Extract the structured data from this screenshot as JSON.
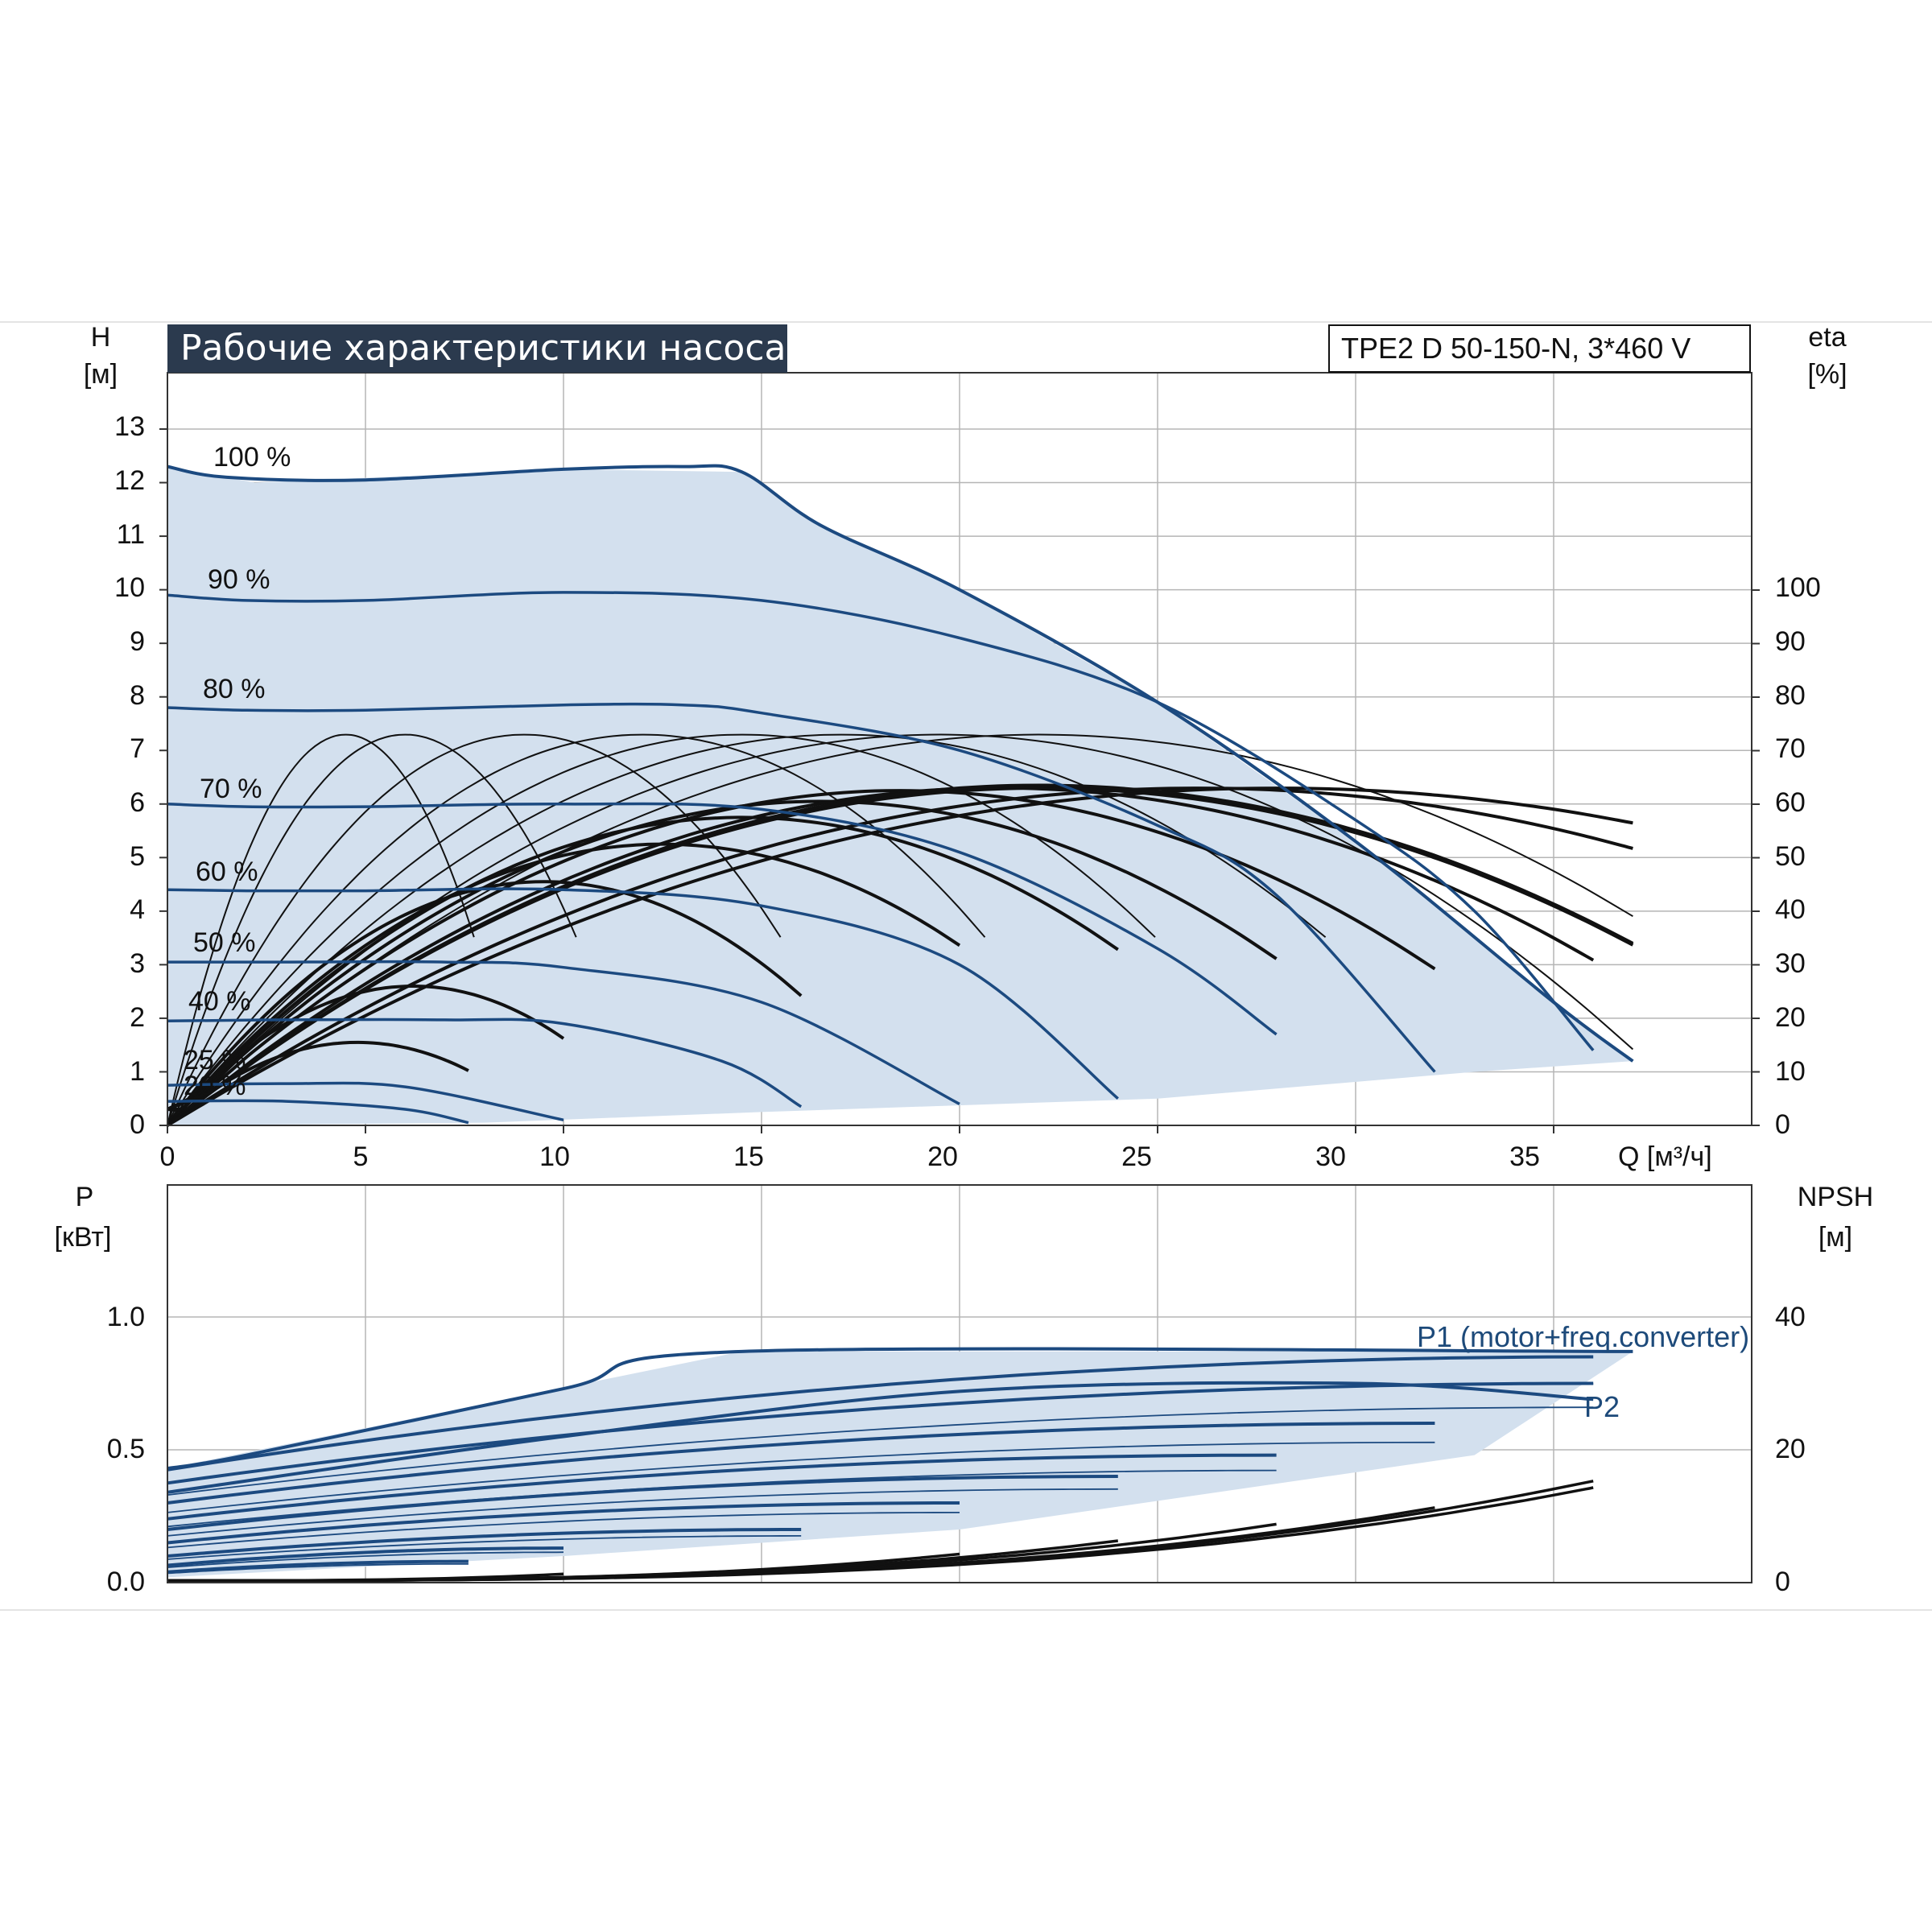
{
  "title": "Рабочие характеристики насоса",
  "model": "TPE2 D 50-150-N, 3*460 V",
  "colors": {
    "curve_blue": "#1c4a80",
    "efficiency_black": "#111111",
    "area_fill": "#d3e0ee",
    "left_fill": "#eef6fc",
    "grid": "#b5b5b5"
  },
  "axes": {
    "head_label": "H",
    "head_unit": "[м]",
    "eta_label": "eta",
    "eta_unit": "[%]",
    "power_label": "P",
    "power_unit": "[кВт]",
    "npsh_label": "NPSH",
    "npsh_unit": "[м]",
    "flow_label": "Q [м³/ч]"
  },
  "labels": {
    "p1": "P1 (motor+freq.converter)",
    "p2": "P2"
  },
  "chart_data": [
    {
      "type": "line",
      "title": "Рабочие характеристики насоса",
      "xlabel": "Q [м³/ч]",
      "ylabel": "H [м]",
      "y2label": "eta [%]",
      "xlim": [
        0,
        40
      ],
      "ylim": [
        0,
        14
      ],
      "y2lim": [
        0,
        140
      ],
      "grid": true,
      "x_ticks": [
        "0",
        "5",
        "10",
        "15",
        "20",
        "25",
        "30",
        "35"
      ],
      "y_ticks": [
        "0",
        "1",
        "2",
        "3",
        "4",
        "5",
        "6",
        "7",
        "8",
        "9",
        "10",
        "11",
        "12",
        "13"
      ],
      "y2_ticks": [
        "0",
        "10",
        "20",
        "30",
        "40",
        "50",
        "60",
        "70",
        "80",
        "90",
        "100"
      ],
      "operating_area": [
        [
          0,
          12.3
        ],
        [
          2.2,
          12
        ],
        [
          10,
          12.25
        ],
        [
          14.5,
          12.2
        ],
        [
          16.5,
          11.2
        ],
        [
          20,
          10
        ],
        [
          25,
          7.9
        ],
        [
          30,
          5.3
        ],
        [
          35,
          2.3
        ],
        [
          37,
          1.2
        ],
        [
          33,
          1
        ],
        [
          25,
          0.5
        ],
        [
          15,
          0.25
        ],
        [
          8,
          0.05
        ],
        [
          0,
          0
        ]
      ],
      "series": [
        {
          "name": "100 %",
          "max_q": 37,
          "points": [
            [
              0,
              12.3
            ],
            [
              1.5,
              12.1
            ],
            [
              5,
              12.05
            ],
            [
              10,
              12.25
            ],
            [
              13,
              12.3
            ],
            [
              14.5,
              12.2
            ],
            [
              16.5,
              11.2
            ],
            [
              20,
              10
            ],
            [
              25,
              7.9
            ],
            [
              30,
              5.3
            ],
            [
              35,
              2.3
            ],
            [
              37,
              1.2
            ]
          ]
        },
        {
          "name": "90 %",
          "max_q": 36,
          "points": [
            [
              0,
              9.9
            ],
            [
              2,
              9.8
            ],
            [
              5,
              9.8
            ],
            [
              10,
              9.95
            ],
            [
              15,
              9.8
            ],
            [
              20,
              9.1
            ],
            [
              25,
              7.9
            ],
            [
              30,
              5.7
            ],
            [
              33,
              4.0
            ],
            [
              36,
              1.4
            ]
          ]
        },
        {
          "name": "80 %",
          "max_q": 32,
          "points": [
            [
              0,
              7.8
            ],
            [
              2,
              7.75
            ],
            [
              5,
              7.75
            ],
            [
              10,
              7.85
            ],
            [
              13,
              7.85
            ],
            [
              15,
              7.7
            ],
            [
              20,
              7.0
            ],
            [
              25,
              5.6
            ],
            [
              28,
              4.3
            ],
            [
              32,
              1.0
            ]
          ]
        },
        {
          "name": "70 %",
          "max_q": 28,
          "points": [
            [
              0,
              6.0
            ],
            [
              2,
              5.95
            ],
            [
              5,
              5.95
            ],
            [
              10,
              6.0
            ],
            [
              15,
              5.9
            ],
            [
              20,
              5.1
            ],
            [
              25,
              3.3
            ],
            [
              28,
              1.7
            ]
          ]
        },
        {
          "name": "60 %",
          "max_q": 24,
          "points": [
            [
              0,
              4.4
            ],
            [
              2,
              4.38
            ],
            [
              5,
              4.38
            ],
            [
              10,
              4.4
            ],
            [
              15,
              4.1
            ],
            [
              20,
              3.0
            ],
            [
              24,
              0.5
            ]
          ]
        },
        {
          "name": "50 %",
          "max_q": 20,
          "points": [
            [
              0,
              3.05
            ],
            [
              3,
              3.05
            ],
            [
              7,
              3.05
            ],
            [
              10,
              2.95
            ],
            [
              15,
              2.3
            ],
            [
              20,
              0.4
            ]
          ]
        },
        {
          "name": "40 %",
          "max_q": 16,
          "points": [
            [
              0,
              1.95
            ],
            [
              3,
              1.97
            ],
            [
              7,
              1.97
            ],
            [
              10,
              1.9
            ],
            [
              14,
              1.2
            ],
            [
              16,
              0.35
            ]
          ]
        },
        {
          "name": "25 %",
          "max_q": 10,
          "points": [
            [
              0,
              0.75
            ],
            [
              3,
              0.78
            ],
            [
              6,
              0.72
            ],
            [
              10,
              0.1
            ]
          ]
        },
        {
          "name": "20 %",
          "max_q": 7.6,
          "points": [
            [
              0,
              0.45
            ],
            [
              3,
              0.45
            ],
            [
              6,
              0.3
            ],
            [
              7.6,
              0.05
            ]
          ]
        }
      ],
      "efficiency_max_pct": [
        73,
        73,
        73,
        73,
        73,
        73,
        73,
        73,
        63,
        63,
        63
      ],
      "efficiency_peak_q": [
        4.5,
        6,
        9,
        12,
        14.5,
        17,
        19.5,
        22,
        22,
        26,
        28
      ]
    },
    {
      "type": "line",
      "xlabel": "Q [м³/ч]",
      "ylabel": "P [кВт]",
      "y2label": "NPSH [м]",
      "xlim": [
        0,
        40
      ],
      "ylim": [
        0,
        1.5
      ],
      "y2lim": [
        0,
        60
      ],
      "grid": true,
      "y_ticks": [
        "0.0",
        "0.5",
        "1.0"
      ],
      "y2_ticks": [
        "0",
        "20",
        "40"
      ],
      "series": [
        {
          "name": "P1 (motor+freq.converter)",
          "points": [
            [
              0,
              0.43
            ],
            [
              2,
              0.48
            ],
            [
              10,
              0.73
            ],
            [
              14.5,
              0.87
            ],
            [
              37,
              0.87
            ]
          ]
        },
        {
          "name": "P2",
          "points": [
            [
              0,
              0.34
            ],
            [
              10,
              0.55
            ],
            [
              20,
              0.72
            ],
            [
              30,
              0.75
            ],
            [
              36,
              0.69
            ]
          ]
        }
      ],
      "power_max_kw": [
        0.85,
        0.75,
        0.6,
        0.48,
        0.4,
        0.3,
        0.2,
        0.13,
        0.08
      ],
      "power_max_q": [
        36,
        36,
        32,
        28,
        24,
        20,
        16,
        10,
        7.6
      ],
      "npsh_end_m": [
        14,
        15,
        11,
        8.5,
        6,
        4,
        2,
        1
      ]
    }
  ]
}
